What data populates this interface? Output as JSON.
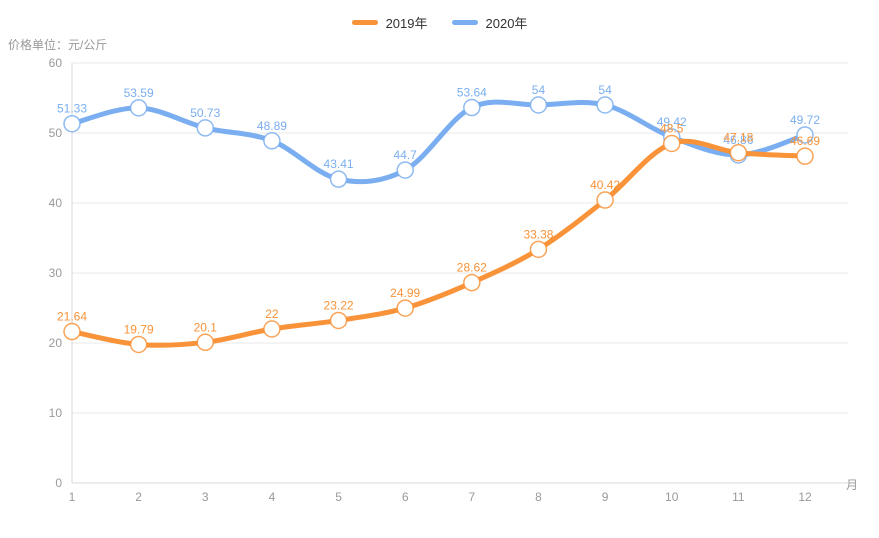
{
  "axis_unit_title": "价格单位：元/公斤",
  "legend": {
    "items": [
      {
        "label": "2019年",
        "color": "#F99339"
      },
      {
        "label": "2020年",
        "color": "#7AAEF0"
      }
    ]
  },
  "chart_data": {
    "type": "line",
    "smooth": true,
    "title": "",
    "xlabel": "月",
    "ylabel": "价格单位：元/公斤",
    "categories": [
      "1",
      "2",
      "3",
      "4",
      "5",
      "6",
      "7",
      "8",
      "9",
      "10",
      "11",
      "12"
    ],
    "series": [
      {
        "name": "2019年",
        "color": "#F99339",
        "values": [
          21.64,
          19.79,
          20.1,
          22,
          23.22,
          24.99,
          28.62,
          33.38,
          40.42,
          48.5,
          47.18,
          46.69
        ]
      },
      {
        "name": "2020年",
        "color": "#7AAEF0",
        "values": [
          51.33,
          53.59,
          50.73,
          48.89,
          43.41,
          44.7,
          53.64,
          54,
          54,
          49.42,
          46.86,
          49.72
        ]
      }
    ],
    "ylim": [
      0,
      60
    ],
    "ytick_step": 10,
    "grid": true,
    "legend_position": "top-center",
    "draw_order_note": "2020 series drawn first, 2019 drawn on top; point markers are hollow white circles; value labels above each point"
  },
  "colors": {
    "axis_text": "#999999",
    "grid_line": "#E9E9E9",
    "axis_line": "#D8D8D8",
    "legend_text": "#333333",
    "background": "#FFFFFF"
  }
}
